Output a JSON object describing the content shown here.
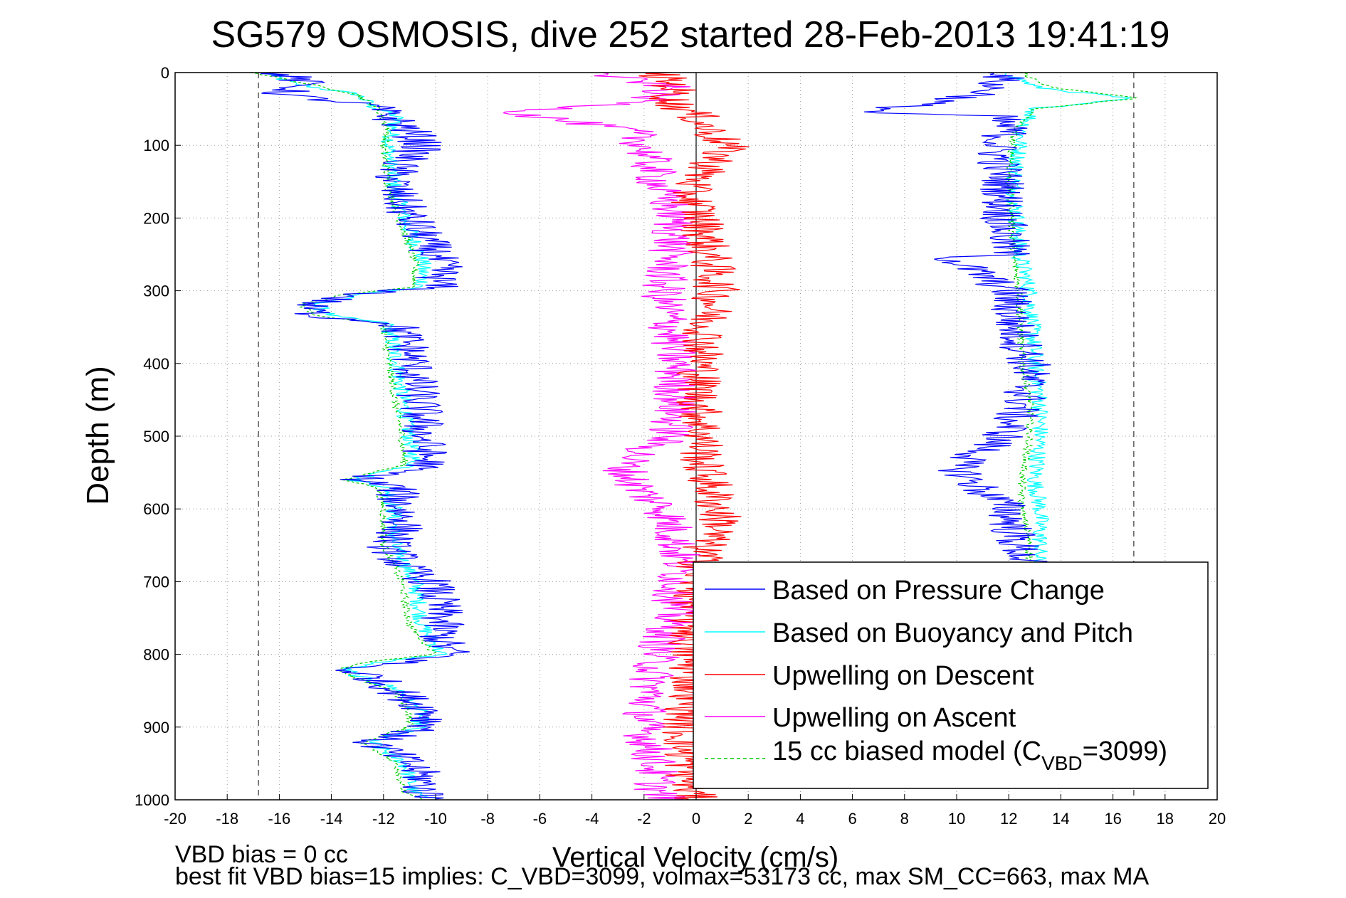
{
  "chart_data": {
    "type": "line",
    "title": "SG579 OSMOSIS, dive 252 started 28-Feb-2013 19:41:19",
    "xlabel": "Vertical Velocity (cm/s)",
    "ylabel": "Depth (m)",
    "xlim": [
      -20,
      20
    ],
    "ylim": [
      0,
      1000
    ],
    "y_reversed": true,
    "grid": true,
    "legend_position": "lower-right",
    "x_ticks": [
      "-20",
      "-18",
      "-16",
      "-14",
      "-12",
      "-10",
      "-8",
      "-6",
      "-4",
      "-2",
      "0",
      "2",
      "4",
      "6",
      "8",
      "10",
      "12",
      "14",
      "16",
      "18",
      "20"
    ],
    "y_ticks": [
      "0",
      "100",
      "200",
      "300",
      "400",
      "500",
      "600",
      "700",
      "800",
      "900",
      "1000"
    ],
    "reference_lines": {
      "vertical_dashed_x": [
        -16.8,
        16.8
      ],
      "vertical_solid_x": [
        0
      ]
    },
    "series": [
      {
        "name": "Based on Pressure Change",
        "color": "#0000ff",
        "legend_label": "Based on Pressure Change",
        "descent": {
          "depth": [
            0,
            15,
            30,
            45,
            60,
            80,
            100,
            130,
            160,
            200,
            240,
            270,
            295,
            305,
            320,
            335,
            345,
            380,
            420,
            460,
            500,
            540,
            560,
            570,
            580,
            600,
            620,
            650,
            680,
            700,
            740,
            780,
            800,
            810,
            820,
            830,
            850,
            880,
            900,
            920,
            930,
            950,
            970,
            990,
            1000
          ],
          "velocity": [
            -16,
            -15,
            -16,
            -12.5,
            -11.8,
            -11,
            -10.5,
            -11.5,
            -11.6,
            -11,
            -10.2,
            -9.8,
            -10,
            -13,
            -15,
            -14.5,
            -11.5,
            -11,
            -10.8,
            -10.6,
            -10.5,
            -10.3,
            -13,
            -11.5,
            -11.5,
            -11.3,
            -11.2,
            -11.8,
            -11.2,
            -10.2,
            -9.8,
            -9.8,
            -9.4,
            -11,
            -13.5,
            -12.5,
            -11.5,
            -10.2,
            -10.2,
            -12.5,
            -12,
            -11,
            -10.5,
            -10.5,
            -10
          ]
        },
        "ascent": {
          "depth": [
            0,
            30,
            55,
            60,
            80,
            100,
            150,
            200,
            250,
            255,
            300,
            350,
            400,
            450,
            500,
            520,
            540,
            560,
            580,
            600,
            640,
            670,
            700
          ],
          "velocity": [
            12,
            11,
            6.5,
            11.5,
            12,
            11.5,
            11.8,
            11.8,
            12,
            9.8,
            12,
            12.2,
            12.8,
            12.6,
            11.8,
            11,
            10,
            10.5,
            11.2,
            12,
            12.2,
            12.6,
            12.8
          ]
        }
      },
      {
        "name": "Based on Buoyancy and Pitch",
        "color": "#00ffff",
        "legend_label": "Based on Buoyancy and Pitch",
        "descent": {
          "depth": [
            0,
            15,
            30,
            45,
            60,
            100,
            160,
            200,
            260,
            295,
            305,
            320,
            335,
            345,
            400,
            460,
            500,
            540,
            560,
            570,
            600,
            650,
            700,
            760,
            800,
            810,
            820,
            830,
            850,
            880,
            900,
            920,
            950,
            990,
            1000
          ],
          "velocity": [
            -16.5,
            -15.5,
            -13,
            -12.5,
            -11.5,
            -11.8,
            -11.6,
            -11.2,
            -10.5,
            -10.5,
            -13,
            -14.6,
            -14,
            -11.8,
            -11.5,
            -11.2,
            -11,
            -10.8,
            -13.2,
            -11.8,
            -11.6,
            -11.6,
            -10.8,
            -10.5,
            -9.8,
            -12,
            -13.5,
            -13,
            -11.3,
            -10.6,
            -10.6,
            -12.5,
            -11.2,
            -10.8,
            -10.2
          ]
        },
        "ascent": {
          "depth": [
            0,
            20,
            35,
            50,
            80,
            150,
            250,
            300,
            400,
            450,
            500,
            560,
            600,
            650,
            700
          ],
          "velocity": [
            12,
            13,
            16.5,
            13,
            12.5,
            12.2,
            12.4,
            12.8,
            13,
            13.2,
            13.2,
            13,
            13.2,
            13.2,
            13
          ]
        }
      },
      {
        "name": "Upwelling on Descent",
        "color": "#ff0000",
        "legend_label": "Upwelling on Descent",
        "depth": [
          0,
          20,
          40,
          60,
          80,
          100,
          130,
          160,
          200,
          250,
          300,
          350,
          400,
          450,
          500,
          540,
          560,
          600,
          620,
          650,
          700,
          750,
          800,
          850,
          900,
          950,
          990,
          1000
        ],
        "velocity": [
          -1.5,
          -0.8,
          -1,
          0,
          0.5,
          1.2,
          0.5,
          -0.3,
          0.2,
          0.5,
          0.8,
          0.4,
          0.2,
          0.1,
          0.3,
          0.2,
          0.5,
          0.8,
          1,
          0.3,
          0,
          -0.2,
          -0.3,
          -0.1,
          -0.5,
          -0.4,
          -0.2,
          0
        ]
      },
      {
        "name": "Upwelling on Ascent",
        "color": "#ff00ff",
        "legend_label": "Upwelling on Ascent",
        "depth": [
          0,
          20,
          40,
          55,
          80,
          100,
          150,
          200,
          250,
          300,
          350,
          400,
          450,
          500,
          520,
          540,
          560,
          580,
          600,
          640,
          680,
          720,
          760,
          800,
          850,
          900,
          950,
          990,
          1000
        ],
        "velocity": [
          -4,
          -1,
          -2,
          -7,
          -2.5,
          -2,
          -1.5,
          -0.8,
          -1,
          -1.3,
          -1,
          -0.8,
          -0.8,
          -1,
          -2,
          -2.8,
          -2.5,
          -2,
          -1.2,
          -0.8,
          -0.6,
          -0.8,
          -1,
          -1.5,
          -1.8,
          -2,
          -1.6,
          -1.5,
          -1
        ]
      },
      {
        "name": "15 cc biased model",
        "color": "#00cc00",
        "legend_label_main": "15 cc biased model (C",
        "legend_label_sub": "VBD",
        "legend_label_end": "=3099)",
        "descent": {
          "depth": [
            0,
            15,
            30,
            50,
            80,
            100,
            160,
            200,
            260,
            295,
            305,
            320,
            335,
            345,
            400,
            460,
            500,
            540,
            560,
            570,
            600,
            650,
            700,
            760,
            800,
            810,
            820,
            830,
            850,
            880,
            900,
            920,
            950,
            990,
            1000
          ],
          "velocity": [
            -17,
            -15,
            -13,
            -12.2,
            -11.8,
            -12,
            -11.8,
            -11.4,
            -10.8,
            -10.8,
            -13.5,
            -15.2,
            -14.5,
            -12,
            -11.8,
            -11.5,
            -11.3,
            -11.2,
            -13.6,
            -12.2,
            -12,
            -12,
            -11.3,
            -11,
            -10,
            -12.5,
            -13.8,
            -13.3,
            -11.6,
            -11,
            -11,
            -12.8,
            -11.5,
            -11.2,
            -10.5
          ]
        },
        "ascent": {
          "depth": [
            0,
            20,
            35,
            50,
            80,
            150,
            250,
            300,
            400,
            450,
            500,
            560,
            600,
            650,
            700
          ],
          "velocity": [
            12.5,
            13.5,
            17,
            13,
            12.2,
            12,
            12.2,
            12.4,
            12.5,
            12.8,
            12.8,
            12.5,
            12.5,
            12.8,
            12.8
          ]
        }
      }
    ]
  },
  "footer": {
    "line1": "VBD bias = 0 cc",
    "line2": "best fit VBD bias=15 implies: C_VBD=3099, volmax=53173 cc, max SM_CC=663, max MA"
  }
}
